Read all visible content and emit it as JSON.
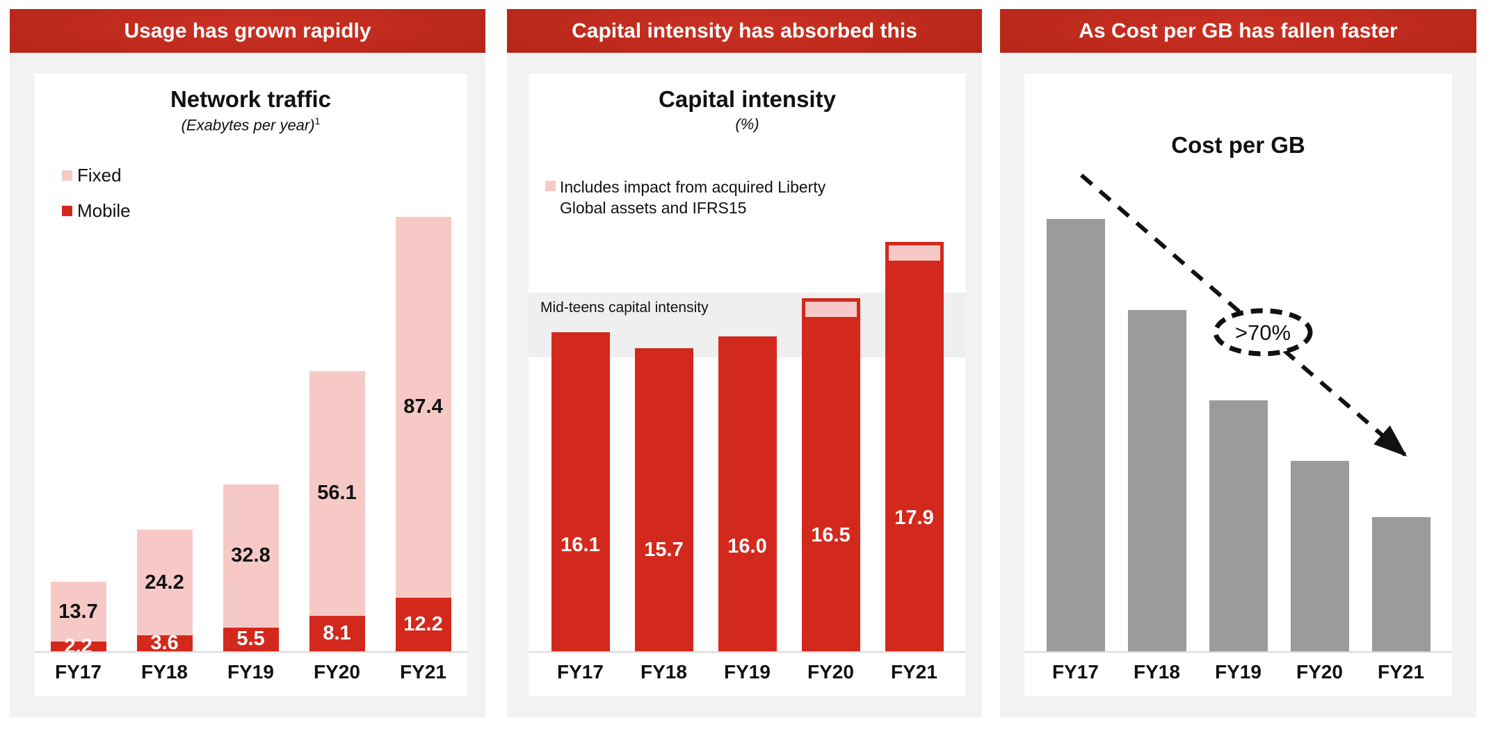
{
  "slide": {
    "colors": {
      "vodafone_red": "#d3291d",
      "pink": "#f6c9c7",
      "header_gradient_center": "#ca3022",
      "header_gradient_edge": "#901709",
      "panel_background": "#f2f2f2",
      "bar_gray": "#9b9b9b",
      "band_gray": "#efefef",
      "axis_gray": "#d9d9d9"
    },
    "panels": [
      {
        "header": "Usage has grown rapidly",
        "title": "Network traffic",
        "subtitle": "(Exabytes per year)",
        "subtitle_sup": "1",
        "legend": [
          {
            "label": "Fixed",
            "color": "#f6c9c7"
          },
          {
            "label": "Mobile",
            "color": "#d3291d"
          }
        ],
        "chart_data": {
          "type": "bar",
          "stacked": true,
          "title": "Network traffic",
          "unit": "Exabytes per year",
          "categories": [
            "FY17",
            "FY18",
            "FY19",
            "FY20",
            "FY21"
          ],
          "series": [
            {
              "name": "Mobile",
              "color": "#d3291d",
              "values": [
                2.2,
                3.6,
                5.5,
                8.1,
                12.2
              ]
            },
            {
              "name": "Fixed",
              "color": "#f6c9c7",
              "values": [
                13.7,
                24.2,
                32.8,
                56.1,
                87.4
              ]
            }
          ],
          "value_labels": true,
          "legend_position": "top-left",
          "grid": false
        }
      },
      {
        "header": "Capital intensity has absorbed this",
        "title": "Capital intensity",
        "subtitle": "(%)",
        "subtitle_sup": "",
        "legend": [
          {
            "label": "Includes impact from acquired Liberty Global assets and IFRS15",
            "color": "#f6c9c7"
          }
        ],
        "chart_data": {
          "type": "bar",
          "stacked": false,
          "title": "Capital intensity",
          "unit": "%",
          "categories": [
            "FY17",
            "FY18",
            "FY19",
            "FY20",
            "FY21"
          ],
          "values": [
            16.1,
            15.7,
            16.0,
            16.5,
            17.9
          ],
          "bar_color": "#d3291d",
          "caps": [
            false,
            false,
            false,
            true,
            true
          ],
          "band_label": "Mid-teens capital intensity",
          "value_labels": true,
          "grid": false
        }
      },
      {
        "header": "As Cost per GB has fallen faster",
        "title": "Cost per GB",
        "subtitle": "",
        "subtitle_sup": "",
        "legend": [],
        "chart_data": {
          "type": "bar",
          "stacked": false,
          "title": "Cost per GB",
          "unit": "indexed, FY17 = 100 (values estimated from bar heights, no labels shown)",
          "categories": [
            "FY17",
            "FY18",
            "FY19",
            "FY20",
            "FY21"
          ],
          "values": [
            100,
            79,
            58,
            44,
            31
          ],
          "bar_color": "#9b9b9b",
          "annotation": ">70%",
          "value_labels": false,
          "grid": false
        }
      }
    ]
  }
}
